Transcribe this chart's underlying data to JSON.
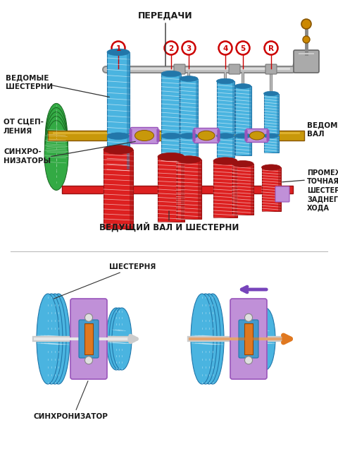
{
  "bg_color": "#ffffff",
  "title_top": "ПЕРЕДАЧИ",
  "label_driven_gears": "ВЕДОМЫЕ\nШЕСТЕРНИ",
  "label_from_clutch": "ОТ СЦЕП-\nЛЕНИЯ",
  "label_synchronizers": "СИНХРО-\nНИЗАТОРЫ",
  "label_driven_shaft": "ВЕДОМЫЙ\nВАЛ",
  "label_drive_shaft": "ВЕДУЩИЙ ВАЛ И ШЕСТЕРНИ",
  "label_reverse_gear": "ПРОМЕЖУ-\nТОЧНАЯ\nШЕСТЕРНЯ\nЗАДНЕГО\nХОДА",
  "gear_numbers": [
    "1",
    "2",
    "3",
    "4",
    "5",
    "R"
  ],
  "label_gear": "ШЕСТЕРНЯ",
  "label_synchronizer": "СИНХРОНИЗАТОР",
  "color_blue": "#4ab4e0",
  "color_blue_dark": "#2277aa",
  "color_blue_light": "#80d0f0",
  "color_red": "#dd2020",
  "color_red_dark": "#991111",
  "color_green": "#33aa44",
  "color_green_dark": "#1a6622",
  "color_purple": "#9955bb",
  "color_purple_light": "#c090d8",
  "color_yellow": "#c8980a",
  "color_yellow_light": "#e8be40",
  "color_gray": "#999999",
  "color_gray_light": "#cccccc",
  "color_gray_dark": "#666666",
  "color_orange": "#e07820",
  "color_purple_arrow": "#7744bb",
  "color_red_circle": "#cc0000",
  "color_brown": "#cc8800"
}
